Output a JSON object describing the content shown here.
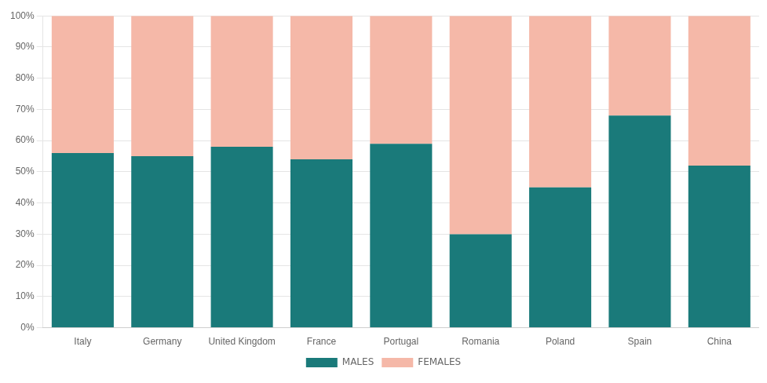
{
  "chart_data": {
    "type": "bar",
    "stacked": true,
    "categories": [
      "Italy",
      "Germany",
      "United Kingdom",
      "France",
      "Portugal",
      "Romania",
      "Poland",
      "Spain",
      "China"
    ],
    "series": [
      {
        "name": "MALES",
        "color": "#1a7a7a",
        "values": [
          56,
          55,
          58,
          54,
          59,
          30,
          45,
          68,
          52
        ]
      },
      {
        "name": "FEMALES",
        "color": "#f5b8a8",
        "values": [
          44,
          45,
          42,
          46,
          41,
          70,
          55,
          32,
          48
        ]
      }
    ],
    "ylim": [
      0,
      100
    ],
    "yticks": [
      {
        "value": 0,
        "label": "0%"
      },
      {
        "value": 10,
        "label": "10%"
      },
      {
        "value": 20,
        "label": "20%"
      },
      {
        "value": 30,
        "label": "30%"
      },
      {
        "value": 40,
        "label": "40%"
      },
      {
        "value": 50,
        "label": "50%"
      },
      {
        "value": 60,
        "label": "60%"
      },
      {
        "value": 70,
        "label": "70%"
      },
      {
        "value": 80,
        "label": "80%"
      },
      {
        "value": 90,
        "label": "90%"
      },
      {
        "value": 100,
        "label": "100%"
      }
    ],
    "grid": true,
    "legend": "bottom"
  }
}
